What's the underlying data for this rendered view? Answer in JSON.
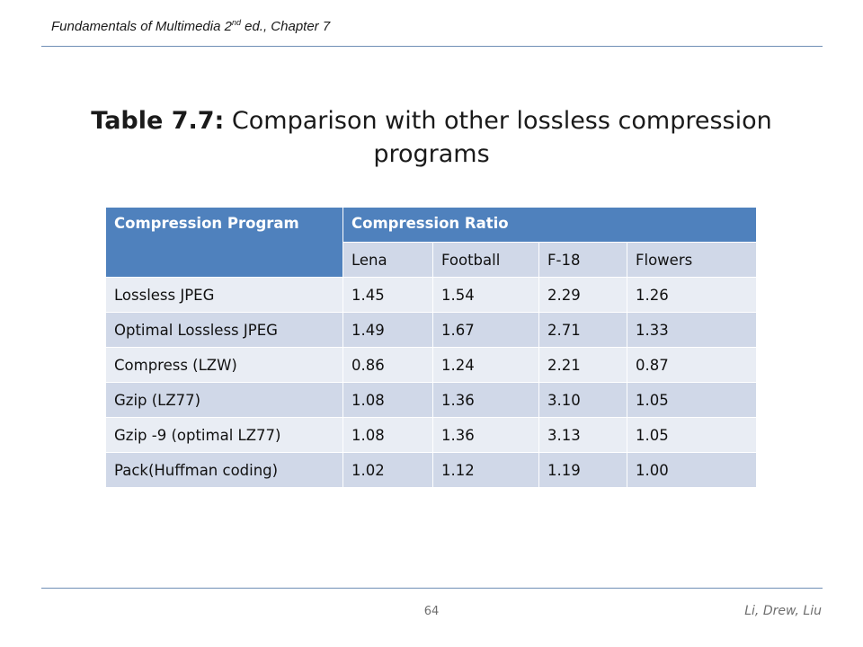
{
  "header": {
    "book_prefix": "Fundamentals of Multimedia 2",
    "book_sup": "nd",
    "book_suffix": " ed., Chapter 7"
  },
  "title": {
    "lead": "Table 7.7:",
    "text": " Comparison with other lossless compression programs"
  },
  "table": {
    "header_program": "Compression Program",
    "header_ratio": "Compression Ratio",
    "images": [
      "Lena",
      "Football",
      "F-18",
      "Flowers"
    ],
    "rows": [
      {
        "program": "Lossless JPEG",
        "values": [
          "1.45",
          "1.54",
          "2.29",
          "1.26"
        ]
      },
      {
        "program": "Optimal Lossless JPEG",
        "values": [
          "1.49",
          "1.67",
          "2.71",
          "1.33"
        ]
      },
      {
        "program": "Compress (LZW)",
        "values": [
          "0.86",
          "1.24",
          "2.21",
          "0.87"
        ]
      },
      {
        "program": "Gzip (LZ77)",
        "values": [
          "1.08",
          "1.36",
          "3.10",
          "1.05"
        ]
      },
      {
        "program": "Gzip -9 (optimal LZ77)",
        "values": [
          "1.08",
          "1.36",
          "3.13",
          "1.05"
        ]
      },
      {
        "program": "Pack(Huffman coding)",
        "values": [
          "1.02",
          "1.12",
          "1.19",
          "1.00"
        ]
      }
    ]
  },
  "footer": {
    "page_number": "64",
    "authors": "Li, Drew, Liu"
  },
  "colors": {
    "header_fill": "#4f81bd",
    "row_dark": "#d0d8e8",
    "row_light": "#e9edf4",
    "rule": "#6f8fb6"
  }
}
